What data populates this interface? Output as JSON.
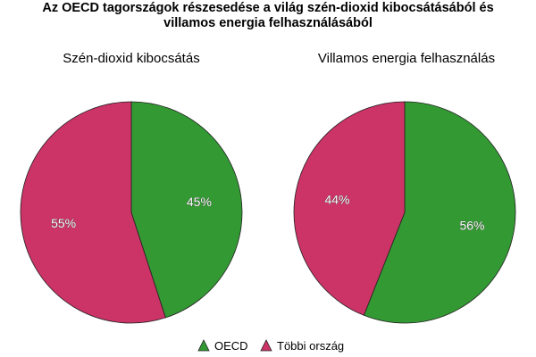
{
  "title_lines": [
    "Az OECD tagországok részesedése a világ szén-dioxid kibocsátásából és",
    "villamos energia felhasználásából"
  ],
  "colors": {
    "oecd": "#339933",
    "other": "#cc3366",
    "outline": "#222222"
  },
  "chart_data": [
    {
      "type": "pie",
      "title": "Szén-dioxid kibocsátás",
      "categories": [
        "OECD",
        "Többi ország"
      ],
      "values": [
        45,
        55
      ],
      "labels": [
        "45%",
        "55%"
      ],
      "colors": [
        "#339933",
        "#cc3366"
      ]
    },
    {
      "type": "pie",
      "title": "Villamos energia felhasználás",
      "categories": [
        "OECD",
        "Többi ország"
      ],
      "values": [
        56,
        44
      ],
      "labels": [
        "56%",
        "44%"
      ],
      "colors": [
        "#339933",
        "#cc3366"
      ]
    }
  ],
  "legend": {
    "placement": "bottom",
    "items": [
      {
        "label": "OECD",
        "color": "#339933"
      },
      {
        "label": "Többi ország",
        "color": "#cc3366"
      }
    ]
  }
}
